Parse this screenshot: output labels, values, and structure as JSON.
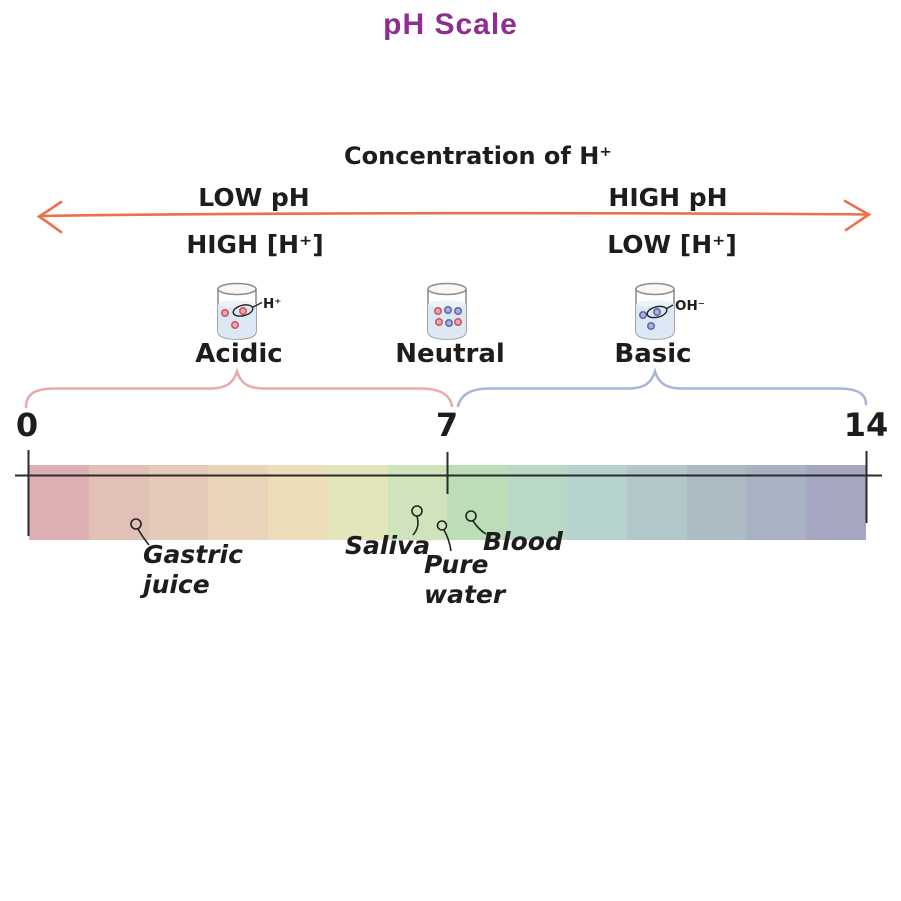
{
  "title": "pH Scale",
  "colors": {
    "title": "#8f2e91",
    "arrow": "#ee6f4c",
    "acidic_brace": "#eaabad",
    "basic_brace": "#aab5da",
    "acid_dot_fill": "#efa8ab",
    "acid_dot_stroke": "#cf5560",
    "base_dot_fill": "#aab1dd",
    "base_dot_stroke": "#5f6aae",
    "beaker_liquid": "#dce9f4"
  },
  "arrow_labels": {
    "center_top": "Concentration of H⁺",
    "left_top": "LOW pH",
    "left_bottom": "HIGH [H⁺]",
    "right_top": "HIGH pH",
    "right_bottom": "LOW [H⁺]"
  },
  "beakers": [
    {
      "label": "Acidic",
      "ion": "H⁺"
    },
    {
      "label": "Neutral",
      "ion": ""
    },
    {
      "label": "Basic",
      "ion": "OH⁻"
    }
  ],
  "scale": {
    "tick_labels": [
      "0",
      "7",
      "14"
    ],
    "segment_colors": [
      "#deb0b3",
      "#e2bfb7",
      "#e6cab9",
      "#e9d4ba",
      "#ecdeb9",
      "#e2e6ba",
      "#cfe4bd",
      "#bcddb7",
      "#b9d8c5",
      "#b6d3cd",
      "#b1c7c9",
      "#adbbc5",
      "#a9b2c3",
      "#a5a7c1"
    ]
  },
  "substances": [
    {
      "name": "Gastric\njuice"
    },
    {
      "name": "Saliva"
    },
    {
      "name": "Pure\nwater"
    },
    {
      "name": "Blood"
    }
  ]
}
